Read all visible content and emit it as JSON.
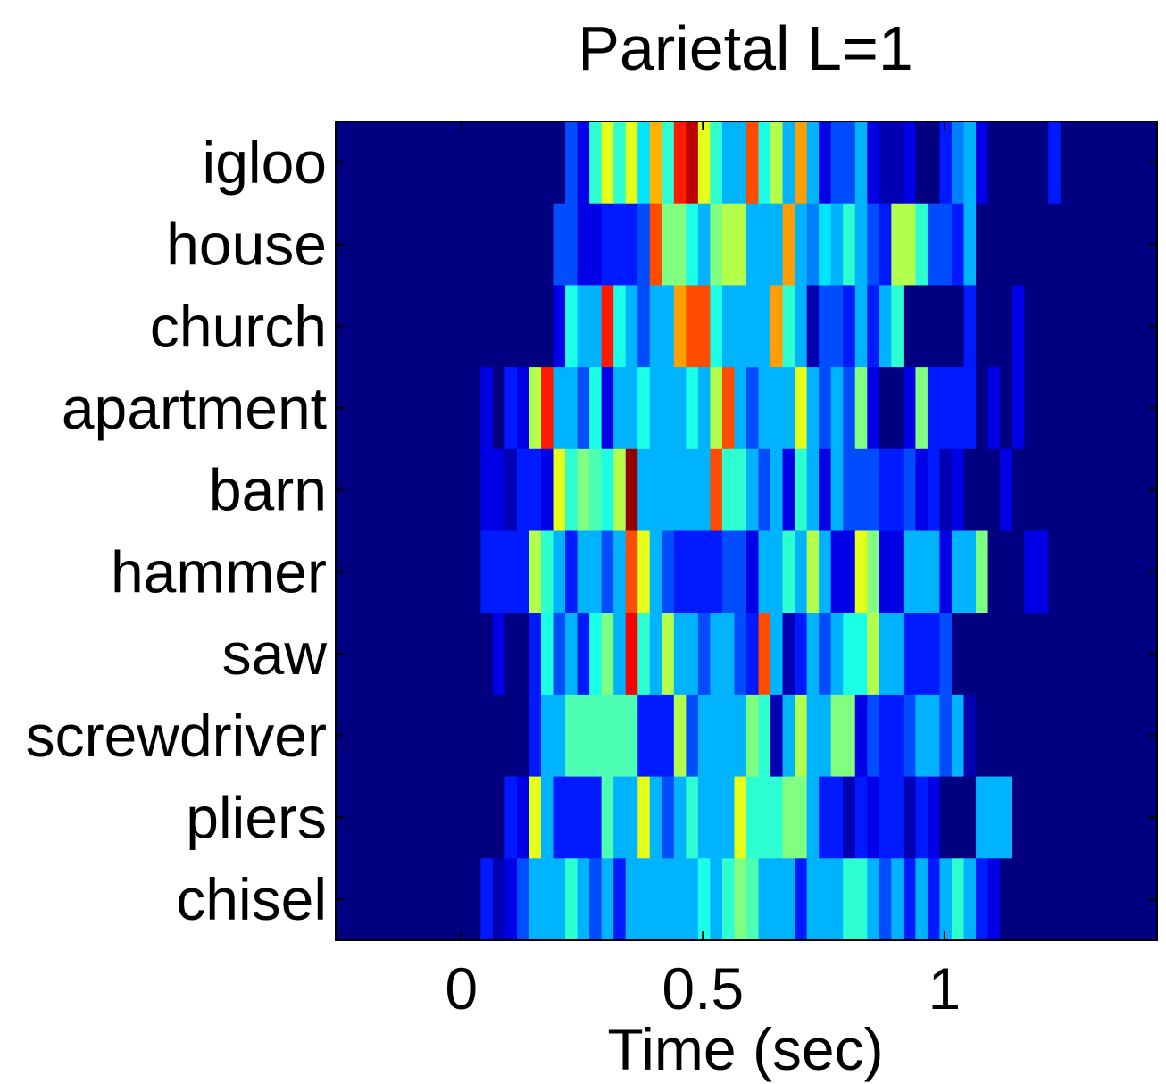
{
  "chart_data": {
    "type": "heatmap",
    "title": "Parietal L=1",
    "xlabel": "Time (sec)",
    "ylabel": "",
    "xlim": [
      -0.26,
      1.44
    ],
    "x_ticks": [
      0,
      0.5,
      1
    ],
    "x_tick_labels": [
      "0",
      "0.5",
      "1"
    ],
    "categories": [
      "igloo",
      "house",
      "church",
      "apartment",
      "barn",
      "hammer",
      "saw",
      "screwdriver",
      "pliers",
      "chisel"
    ],
    "colormap": "jet",
    "value_range": [
      0,
      1
    ],
    "bin_width_sec": 0.025,
    "bin_start_sec": -0.26,
    "rows": [
      [
        0,
        0,
        0,
        0,
        0,
        0,
        0,
        0,
        0,
        0,
        0,
        0,
        0,
        0,
        0,
        0,
        0,
        0,
        0,
        0.2,
        0.1,
        0.42,
        0.6,
        0.42,
        0.6,
        0.35,
        0.7,
        0.42,
        0.85,
        0.94,
        0.6,
        0.42,
        0.3,
        0.3,
        0.8,
        0.4,
        0.55,
        0.3,
        0.72,
        0.3,
        0.1,
        0.2,
        0.2,
        0.3,
        0.1,
        0.05,
        0.05,
        0.1,
        0,
        0,
        0.15,
        0.25,
        0.3,
        0.1,
        0,
        0,
        0,
        0,
        0,
        0.15,
        0,
        0,
        0,
        0,
        0,
        0,
        0,
        0,
        0,
        0
      ],
      [
        0,
        0,
        0,
        0,
        0,
        0,
        0,
        0,
        0,
        0,
        0,
        0,
        0,
        0,
        0,
        0,
        0,
        0,
        0.2,
        0.2,
        0.1,
        0.1,
        0.15,
        0.15,
        0.15,
        0.2,
        0.8,
        0.5,
        0.5,
        0.4,
        0.3,
        0.5,
        0.55,
        0.55,
        0.3,
        0.3,
        0.3,
        0.72,
        0.3,
        0.25,
        0.35,
        0.3,
        0.42,
        0.3,
        0.2,
        0.15,
        0.55,
        0.55,
        0.42,
        0.2,
        0.2,
        0.15,
        0.3,
        0,
        0,
        0,
        0,
        0,
        0,
        0,
        0,
        0,
        0,
        0,
        0,
        0,
        0,
        0,
        0,
        0
      ],
      [
        0,
        0,
        0,
        0,
        0,
        0,
        0,
        0,
        0,
        0,
        0,
        0,
        0,
        0,
        0,
        0,
        0,
        0,
        0.1,
        0.4,
        0.3,
        0.3,
        0.85,
        0.4,
        0.3,
        0.2,
        0.3,
        0.3,
        0.72,
        0.8,
        0.8,
        0.4,
        0.3,
        0.3,
        0.3,
        0.3,
        0.72,
        0.42,
        0.3,
        0.05,
        0.2,
        0.2,
        0.15,
        0.3,
        0.15,
        0.3,
        0.42,
        0,
        0,
        0,
        0,
        0,
        0.15,
        0,
        0,
        0,
        0.1,
        0,
        0,
        0,
        0,
        0,
        0,
        0,
        0,
        0,
        0,
        0,
        0,
        0
      ],
      [
        0,
        0,
        0,
        0,
        0,
        0,
        0,
        0,
        0,
        0,
        0,
        0,
        0.1,
        0,
        0.15,
        0.1,
        0.55,
        0.85,
        0.3,
        0.3,
        0.2,
        0.4,
        0.1,
        0.3,
        0.3,
        0.4,
        0.3,
        0.3,
        0.3,
        0.4,
        0.3,
        0.55,
        0.8,
        0.3,
        0.2,
        0.3,
        0.3,
        0.3,
        0.6,
        0.3,
        0.2,
        0.3,
        0.2,
        0.5,
        0.1,
        0,
        0,
        0.1,
        0.5,
        0.15,
        0.15,
        0.15,
        0.15,
        0,
        0.1,
        0,
        0.1,
        0,
        0,
        0,
        0,
        0,
        0,
        0,
        0,
        0,
        0,
        0,
        0,
        0
      ],
      [
        0,
        0,
        0,
        0,
        0,
        0,
        0,
        0,
        0,
        0,
        0,
        0,
        0.1,
        0.1,
        0.05,
        0.15,
        0.15,
        0.1,
        0.6,
        0.42,
        0.5,
        0.45,
        0.4,
        0.55,
        0.98,
        0.3,
        0.3,
        0.3,
        0.3,
        0.3,
        0.3,
        0.8,
        0.42,
        0.42,
        0.3,
        0.2,
        0.3,
        0.1,
        0.42,
        0.3,
        0.1,
        0.3,
        0.2,
        0.2,
        0.2,
        0.15,
        0.15,
        0.2,
        0.1,
        0.15,
        0.05,
        0.1,
        0,
        0,
        0,
        0.1,
        0,
        0,
        0,
        0,
        0,
        0,
        0,
        0,
        0,
        0,
        0,
        0,
        0,
        0
      ],
      [
        0,
        0,
        0,
        0,
        0,
        0,
        0,
        0,
        0,
        0,
        0,
        0,
        0.15,
        0.15,
        0.15,
        0.15,
        0.55,
        0.42,
        0.3,
        0.15,
        0.3,
        0.3,
        0.2,
        0.3,
        0.8,
        0.6,
        0.3,
        0.2,
        0.15,
        0.15,
        0.15,
        0.15,
        0.2,
        0.2,
        0.1,
        0.3,
        0.3,
        0.42,
        0.3,
        0.55,
        0.3,
        0.1,
        0.1,
        0.6,
        0.5,
        0.1,
        0.1,
        0.3,
        0.3,
        0.3,
        0.1,
        0.3,
        0.3,
        0.5,
        0,
        0,
        0,
        0.1,
        0.1,
        0,
        0,
        0,
        0,
        0,
        0,
        0,
        0,
        0,
        0,
        0
      ],
      [
        0,
        0,
        0,
        0,
        0,
        0,
        0,
        0,
        0,
        0,
        0,
        0,
        0,
        0.1,
        0,
        0,
        0.15,
        0.4,
        0.2,
        0.3,
        0.15,
        0.4,
        0.5,
        0.3,
        0.88,
        0.42,
        0.3,
        0.55,
        0.3,
        0.3,
        0.2,
        0.3,
        0.3,
        0.2,
        0.15,
        0.8,
        0.3,
        0.05,
        0.15,
        0.3,
        0.2,
        0.3,
        0.4,
        0.4,
        0.55,
        0.3,
        0.3,
        0.15,
        0.15,
        0.15,
        0.2,
        0,
        0,
        0,
        0,
        0,
        0,
        0,
        0,
        0,
        0,
        0,
        0,
        0,
        0,
        0,
        0,
        0,
        0,
        0
      ],
      [
        0,
        0,
        0,
        0,
        0,
        0,
        0,
        0,
        0,
        0,
        0,
        0,
        0,
        0,
        0,
        0,
        0.15,
        0.3,
        0.3,
        0.45,
        0.45,
        0.45,
        0.45,
        0.45,
        0.45,
        0.15,
        0.15,
        0.15,
        0.55,
        0.2,
        0.3,
        0.3,
        0.3,
        0.3,
        0.5,
        0.42,
        0.05,
        0.3,
        0.55,
        0.3,
        0.3,
        0.5,
        0.5,
        0.1,
        0.2,
        0.15,
        0.15,
        0.2,
        0.3,
        0.3,
        0.2,
        0.3,
        0.05,
        0,
        0,
        0,
        0,
        0,
        0,
        0,
        0,
        0,
        0,
        0,
        0,
        0,
        0,
        0,
        0,
        0
      ],
      [
        0,
        0,
        0,
        0,
        0,
        0,
        0,
        0,
        0,
        0,
        0,
        0,
        0,
        0,
        0.15,
        0.1,
        0.6,
        0.3,
        0.15,
        0.15,
        0.15,
        0.15,
        0.45,
        0.3,
        0.3,
        0.6,
        0.3,
        0.2,
        0.3,
        0.42,
        0.3,
        0.3,
        0.3,
        0.6,
        0.42,
        0.42,
        0.42,
        0.5,
        0.5,
        0.3,
        0.15,
        0.15,
        0.05,
        0.15,
        0.1,
        0.15,
        0.15,
        0.05,
        0.15,
        0.1,
        0,
        0,
        0,
        0.3,
        0.3,
        0.3,
        0,
        0,
        0,
        0,
        0,
        0,
        0,
        0,
        0,
        0,
        0,
        0,
        0,
        0
      ],
      [
        0,
        0,
        0,
        0,
        0,
        0,
        0,
        0,
        0,
        0,
        0,
        0,
        0.15,
        0.05,
        0.1,
        0.2,
        0.3,
        0.3,
        0.3,
        0.42,
        0.3,
        0.2,
        0.3,
        0.15,
        0.3,
        0.3,
        0.3,
        0.3,
        0.3,
        0.3,
        0.4,
        0.3,
        0.42,
        0.5,
        0.45,
        0.3,
        0.3,
        0.3,
        0.15,
        0.3,
        0.3,
        0.3,
        0.42,
        0.42,
        0.3,
        0.2,
        0.3,
        0.15,
        0.3,
        0.15,
        0.3,
        0.42,
        0.3,
        0.15,
        0.1,
        0,
        0,
        0,
        0,
        0,
        0,
        0,
        0,
        0,
        0,
        0,
        0,
        0,
        0,
        0
      ]
    ],
    "grid": false,
    "legend": "none"
  }
}
